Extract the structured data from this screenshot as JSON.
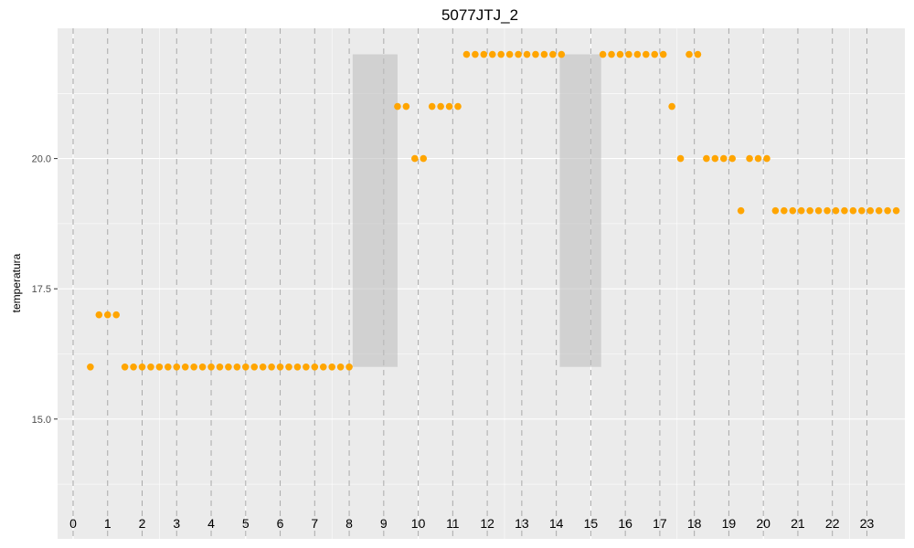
{
  "chart_data": {
    "type": "scatter",
    "title": "5077JTJ_2",
    "xlabel": "",
    "ylabel": "temperatura",
    "ylim": [
      12.7,
      22.5
    ],
    "xlim": [
      -0.45,
      24.1
    ],
    "y_ticks": [
      15.0,
      17.5,
      20.0
    ],
    "y_tick_labels": [
      "15.0",
      "17.5",
      "20.0"
    ],
    "x_ticks": [
      0,
      1,
      2,
      3,
      4,
      5,
      6,
      7,
      8,
      9,
      10,
      11,
      12,
      13,
      14,
      15,
      16,
      17,
      18,
      19,
      20,
      21,
      22,
      23
    ],
    "x_tick_labels": [
      "0",
      "1",
      "2",
      "3",
      "4",
      "5",
      "6",
      "7",
      "8",
      "9",
      "10",
      "11",
      "12",
      "13",
      "14",
      "15",
      "16",
      "17",
      "18",
      "19",
      "20",
      "21",
      "22",
      "23"
    ],
    "x_tick_label_y": 13.0,
    "grid": true,
    "dashed_vlines": [
      0,
      1,
      2,
      3,
      4,
      5,
      6,
      7,
      8,
      9,
      10,
      11,
      12,
      13,
      14,
      15,
      16,
      17,
      18,
      19,
      20,
      21,
      22,
      23
    ],
    "shaded_regions": [
      {
        "x": [
          8.1,
          9.4
        ],
        "y": [
          16.0,
          22.0
        ]
      },
      {
        "x": [
          14.1,
          15.3
        ],
        "y": [
          16.0,
          22.0
        ]
      }
    ],
    "series": [
      {
        "color": "#FFA500",
        "points": [
          [
            0.5,
            16.0
          ],
          [
            0.75,
            17.0
          ],
          [
            1.0,
            17.0
          ],
          [
            1.25,
            17.0
          ],
          [
            1.5,
            16.0
          ],
          [
            1.75,
            16.0
          ],
          [
            2.0,
            16.0
          ],
          [
            2.25,
            16.0
          ],
          [
            2.5,
            16.0
          ],
          [
            2.75,
            16.0
          ],
          [
            3.0,
            16.0
          ],
          [
            3.25,
            16.0
          ],
          [
            3.5,
            16.0
          ],
          [
            3.75,
            16.0
          ],
          [
            4.0,
            16.0
          ],
          [
            4.25,
            16.0
          ],
          [
            4.5,
            16.0
          ],
          [
            4.75,
            16.0
          ],
          [
            5.0,
            16.0
          ],
          [
            5.25,
            16.0
          ],
          [
            5.5,
            16.0
          ],
          [
            5.75,
            16.0
          ],
          [
            6.0,
            16.0
          ],
          [
            6.25,
            16.0
          ],
          [
            6.5,
            16.0
          ],
          [
            6.75,
            16.0
          ],
          [
            7.0,
            16.0
          ],
          [
            7.25,
            16.0
          ],
          [
            7.5,
            16.0
          ],
          [
            7.75,
            16.0
          ],
          [
            8.0,
            16.0
          ],
          [
            9.4,
            21.0
          ],
          [
            9.65,
            21.0
          ],
          [
            9.9,
            20.0
          ],
          [
            10.15,
            20.0
          ],
          [
            10.4,
            21.0
          ],
          [
            10.65,
            21.0
          ],
          [
            10.9,
            21.0
          ],
          [
            11.15,
            21.0
          ],
          [
            11.4,
            22.0
          ],
          [
            11.65,
            22.0
          ],
          [
            11.9,
            22.0
          ],
          [
            12.15,
            22.0
          ],
          [
            12.4,
            22.0
          ],
          [
            12.65,
            22.0
          ],
          [
            12.9,
            22.0
          ],
          [
            13.15,
            22.0
          ],
          [
            13.4,
            22.0
          ],
          [
            13.65,
            22.0
          ],
          [
            13.9,
            22.0
          ],
          [
            14.15,
            22.0
          ],
          [
            15.35,
            22.0
          ],
          [
            15.6,
            22.0
          ],
          [
            15.85,
            22.0
          ],
          [
            16.1,
            22.0
          ],
          [
            16.35,
            22.0
          ],
          [
            16.6,
            22.0
          ],
          [
            16.85,
            22.0
          ],
          [
            17.1,
            22.0
          ],
          [
            17.35,
            21.0
          ],
          [
            17.6,
            20.0
          ],
          [
            17.85,
            22.0
          ],
          [
            18.1,
            22.0
          ],
          [
            18.35,
            20.0
          ],
          [
            18.6,
            20.0
          ],
          [
            18.85,
            20.0
          ],
          [
            19.1,
            20.0
          ],
          [
            19.35,
            19.0
          ],
          [
            19.6,
            20.0
          ],
          [
            19.85,
            20.0
          ],
          [
            20.1,
            20.0
          ],
          [
            20.35,
            19.0
          ],
          [
            20.6,
            19.0
          ],
          [
            20.85,
            19.0
          ],
          [
            21.1,
            19.0
          ],
          [
            21.35,
            19.0
          ],
          [
            21.6,
            19.0
          ],
          [
            21.85,
            19.0
          ],
          [
            22.1,
            19.0
          ],
          [
            22.35,
            19.0
          ],
          [
            22.6,
            19.0
          ],
          [
            22.85,
            19.0
          ],
          [
            23.1,
            19.0
          ],
          [
            23.35,
            19.0
          ],
          [
            23.6,
            19.0
          ],
          [
            23.85,
            19.0
          ]
        ]
      }
    ]
  }
}
